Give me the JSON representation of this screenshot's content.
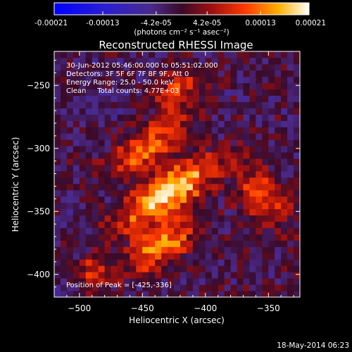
{
  "chart_data": {
    "type": "heatmap",
    "title": "Reconstructed RHESSI Image",
    "xlabel": "Heliocentric X (arcsec)",
    "ylabel": "Heliocentric Y (arcsec)",
    "xlim": [
      -520,
      -325
    ],
    "ylim": [
      -418,
      -223
    ],
    "x_ticks": [
      -500,
      -450,
      -400,
      -350
    ],
    "y_ticks": [
      -250,
      -300,
      -350,
      -400
    ],
    "colorbar": {
      "min": -0.00021,
      "max": 0.00021,
      "ticks": [
        {
          "value": -0.00021,
          "label": "-0.00021"
        },
        {
          "value": -0.00013,
          "label": "-0.00013"
        },
        {
          "value": -4.2e-05,
          "label": "-4.2e-05"
        },
        {
          "value": 4.2e-05,
          "label": "4.2e-05"
        },
        {
          "value": 0.00013,
          "label": "0.00013"
        },
        {
          "value": 0.00021,
          "label": "0.00021"
        }
      ],
      "unit_label": "(photons cm⁻² s⁻¹ asec⁻²)"
    },
    "annotations": {
      "time_range": "30-Jun-2012 05:46:00.000 to 05:51:02.000",
      "detectors": "Detectors: 3F 5F 6F 7F 8F 9F, Att 0",
      "energy_range": "Energy Range: 25.0 - 50.0 keV",
      "clean_counts": "Clean     Total counts: 4.77E+03",
      "peak_position": "Position of Peak = [-425,-336]"
    },
    "emission_features": [
      {
        "name": "top",
        "x": -423,
        "y": -254,
        "value": 0.00012
      },
      {
        "name": "upper",
        "x": -445,
        "y": -298,
        "value": 0.00014
      },
      {
        "name": "central",
        "x": -430,
        "y": -335,
        "value": 0.00021
      },
      {
        "name": "lower",
        "x": -435,
        "y": -377,
        "value": 0.00016
      },
      {
        "name": "right",
        "x": -354,
        "y": -338,
        "value": 0.00012
      },
      {
        "name": "bottom-left",
        "x": -490,
        "y": -398,
        "value": 0.0001
      }
    ]
  },
  "footer": {
    "timestamp": "18-May-2014 06:23"
  }
}
